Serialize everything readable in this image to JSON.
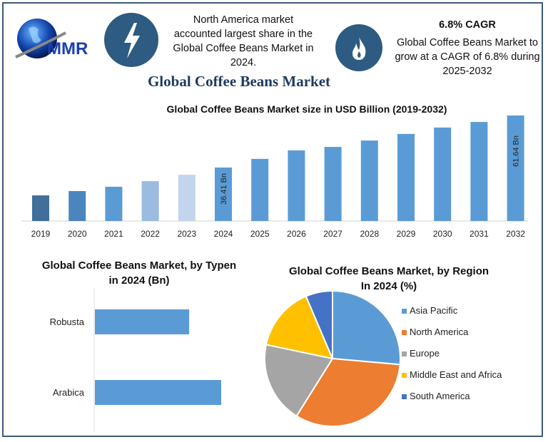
{
  "logo": {
    "text": "MMR"
  },
  "highlights": [
    {
      "icon": "lightning-bolt-icon",
      "text": [
        "North America market",
        "accounted largest share in the",
        "Global Coffee Beans Market in",
        "2024."
      ]
    },
    {
      "icon": "flame-icon",
      "heading": "6.8% CAGR",
      "text": [
        "Global Coffee Beans Market to",
        "grow at a CAGR of 6.8% during",
        "2025-2032"
      ]
    }
  ],
  "main_title": "Global Coffee Beans Market",
  "colors": {
    "bar": "#5b9bd5",
    "dark1": "#3f6f9a",
    "dark2": "#4a86bd",
    "light1": "#9bbbe0",
    "light2": "#c3d5ec",
    "icon_circle": "#2d5b82"
  },
  "chart_data": [
    {
      "type": "bar",
      "title": "Global Coffee Beans Market size in USD Billion (2019-2032)",
      "categories": [
        "2019",
        "2020",
        "2021",
        "2022",
        "2023",
        "2024",
        "2025",
        "2026",
        "2027",
        "2028",
        "2029",
        "2030",
        "2031",
        "2032"
      ],
      "values": [
        22.9,
        25.0,
        27.1,
        29.8,
        32.9,
        36.41,
        40.6,
        44.7,
        46.4,
        49.5,
        52.7,
        55.8,
        58.5,
        61.64
      ],
      "data_labels": {
        "2024": "36.41 Bn",
        "2032": "61.64 Bn"
      },
      "bar_colors": [
        "#3f6f9a",
        "#4a86bd",
        "#5b9bd5",
        "#9bbbe0",
        "#c3d5ec",
        "#5b9bd5",
        "#5b9bd5",
        "#5b9bd5",
        "#5b9bd5",
        "#5b9bd5",
        "#5b9bd5",
        "#5b9bd5",
        "#5b9bd5",
        "#5b9bd5"
      ],
      "grid": false
    },
    {
      "type": "bar",
      "orientation": "horizontal",
      "title": [
        "Global Coffee Beans Market, by Typen",
        "in 2024 (Bn)"
      ],
      "categories": [
        "Robusta",
        "Arabica"
      ],
      "values": [
        15.6,
        20.9
      ],
      "grid": false
    },
    {
      "type": "pie",
      "title": [
        "Global Coffee Beans Market, by Region",
        "In 2024 (%)"
      ],
      "labels": [
        "Asia Pacific",
        "North America",
        "Europe",
        "Middle East and Africa",
        "South America"
      ],
      "values": [
        26.4,
        32.5,
        19.4,
        15.3,
        6.4
      ],
      "colors": [
        "#5b9bd5",
        "#ed7d31",
        "#a5a5a5",
        "#ffc000",
        "#4472c4"
      ],
      "legend": "right"
    }
  ]
}
